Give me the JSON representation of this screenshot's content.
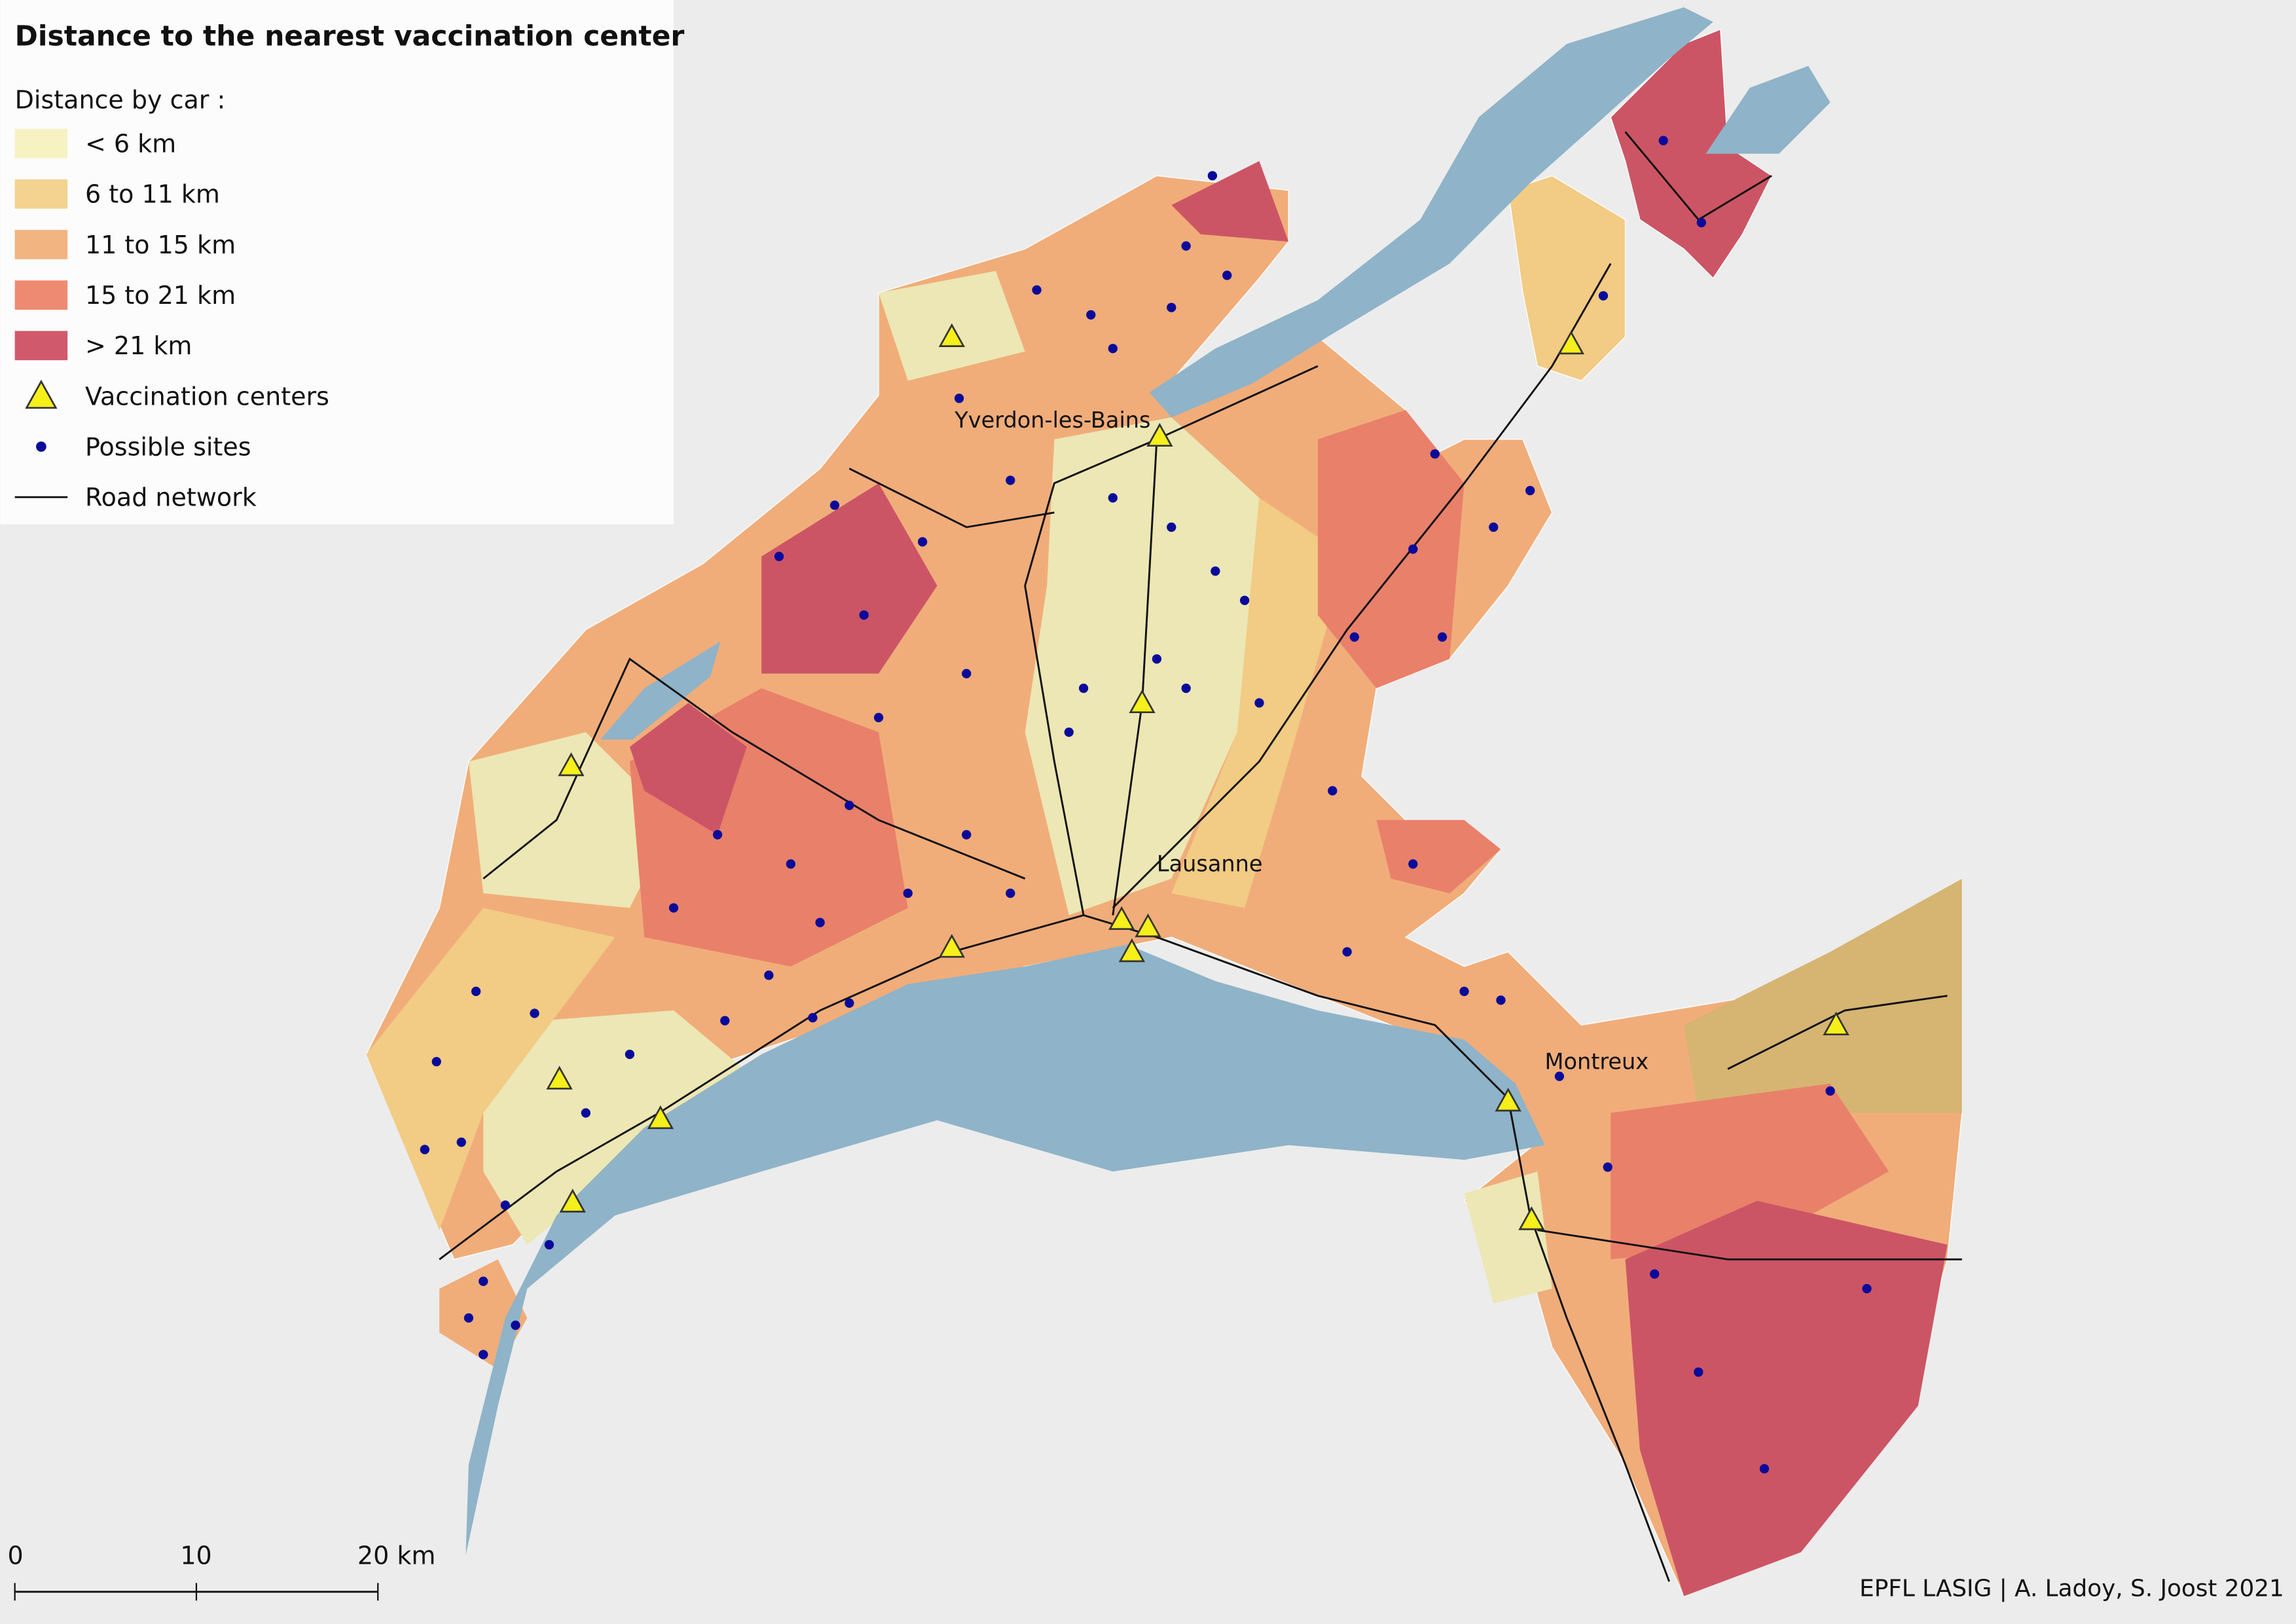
{
  "title": "Distance to the nearest vaccination center",
  "legend": {
    "title": "Distance by car :",
    "items": [
      "< 6 km",
      "6 to 11 km",
      "11 to 15 km",
      "15 to 21 km",
      "> 21 km",
      "Vaccination centers",
      "Possible sites",
      "Road network"
    ]
  },
  "places": [
    "Yverdon-les-Bains",
    "Lausanne",
    "Montreux"
  ],
  "scale_bar": [
    "0",
    "10",
    "20 km"
  ],
  "credit": "EPFL LASIG | A. Ladoy, S. Joost 2021"
}
